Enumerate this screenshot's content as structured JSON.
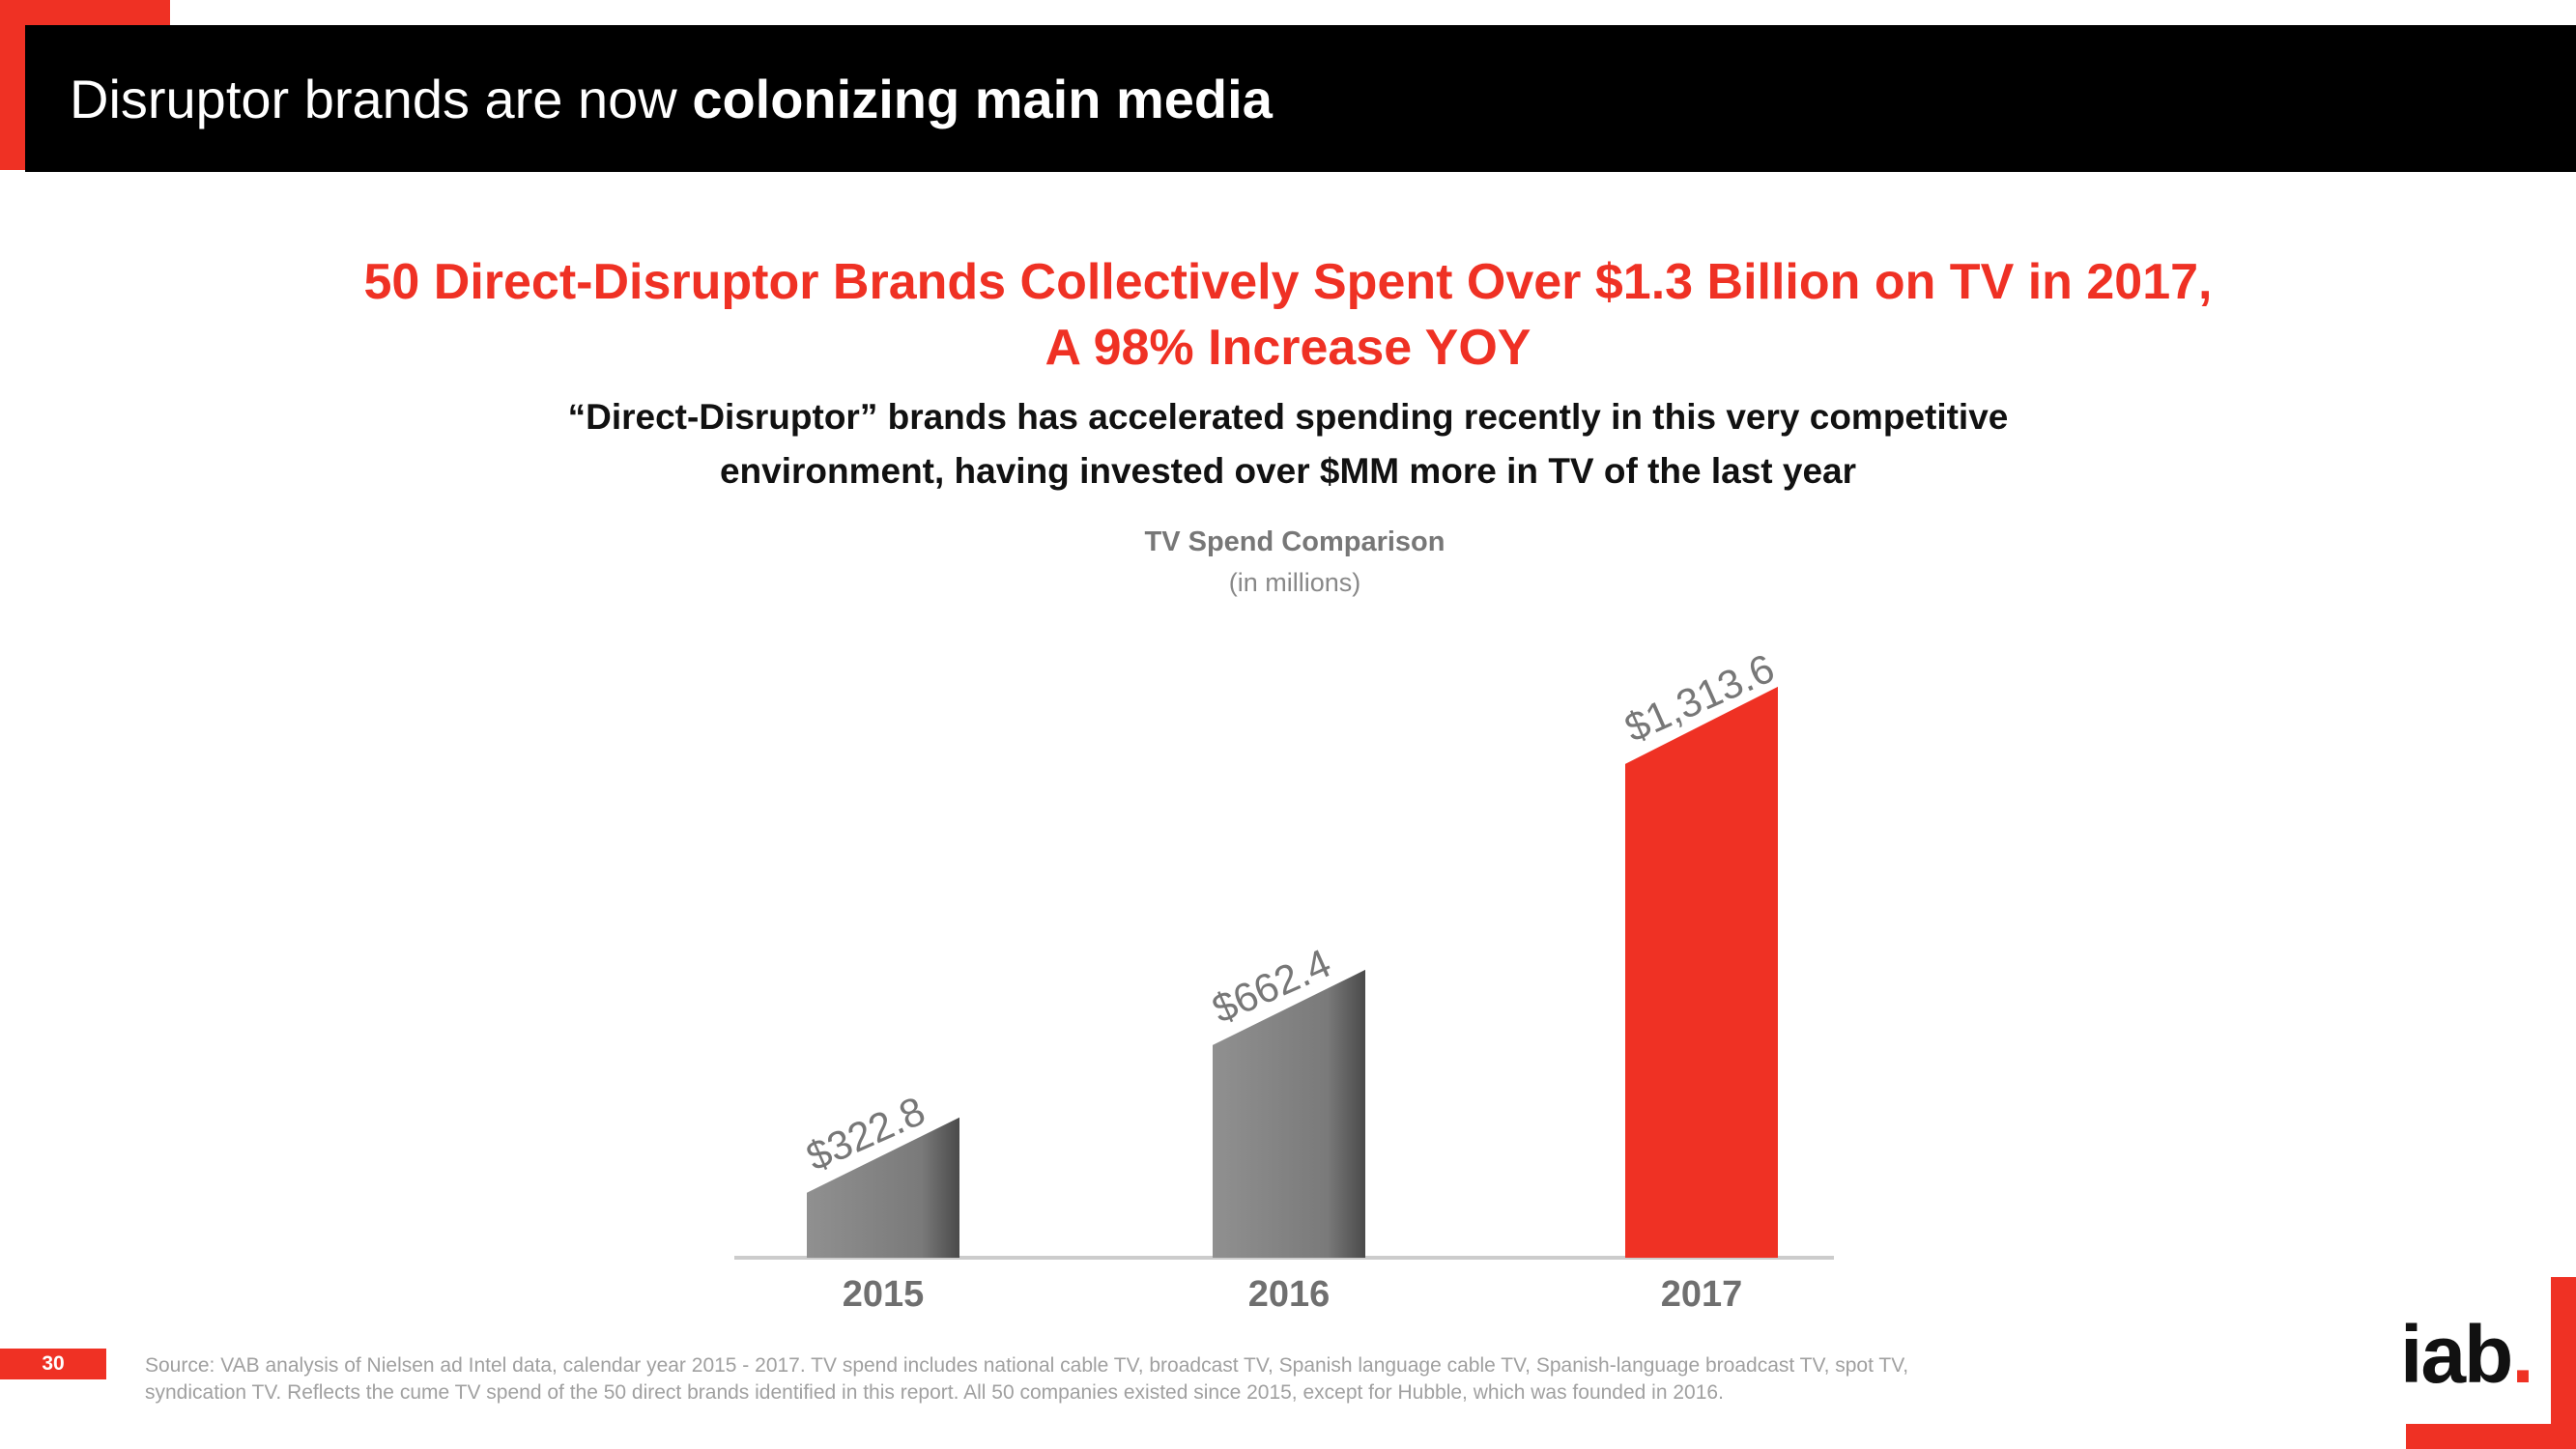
{
  "header": {
    "title_regular": "Disruptor brands are now ",
    "title_bold": "colonizing main media"
  },
  "headline": {
    "line1": "50 Direct-Disruptor Brands Collectively Spent Over $1.3 Billion on TV in 2017,",
    "line2": "A 98% Increase YOY"
  },
  "subhead": {
    "line1": "“Direct-Disruptor” brands has accelerated spending recently in this very competitive",
    "line2": "environment, having invested over $MM more in TV of the last year"
  },
  "chart_data": {
    "type": "bar",
    "title": "TV Spend Comparison",
    "subtitle": "(in millions)",
    "categories": [
      "2015",
      "2016",
      "2017"
    ],
    "values": [
      322.8,
      662.4,
      1313.6
    ],
    "data_labels": [
      "$322.8",
      "$662.4",
      "$1,313.6"
    ],
    "colors": [
      "#7a7a7a",
      "#7a7a7a",
      "#ef3124"
    ],
    "xlabel": "",
    "ylabel": "",
    "ylim": [
      0,
      1400
    ]
  },
  "footer": {
    "page_number": "30",
    "source_line1": "Source: VAB analysis of Nielsen ad Intel data, calendar year 2015 - 2017. TV spend includes national cable TV, broadcast TV, Spanish language cable TV, Spanish-language broadcast TV, spot TV,",
    "source_line2": "syndication TV. Reflects the cume TV spend of the 50 direct brands identified in this report. All 50 companies existed since 2015, except for Hubble, which was founded in 2016.",
    "logo_text": "iab",
    "logo_dot": "."
  },
  "colors": {
    "accent": "#ef3124",
    "header_bg": "#000000",
    "bar_gray": "#7a7a7a"
  }
}
